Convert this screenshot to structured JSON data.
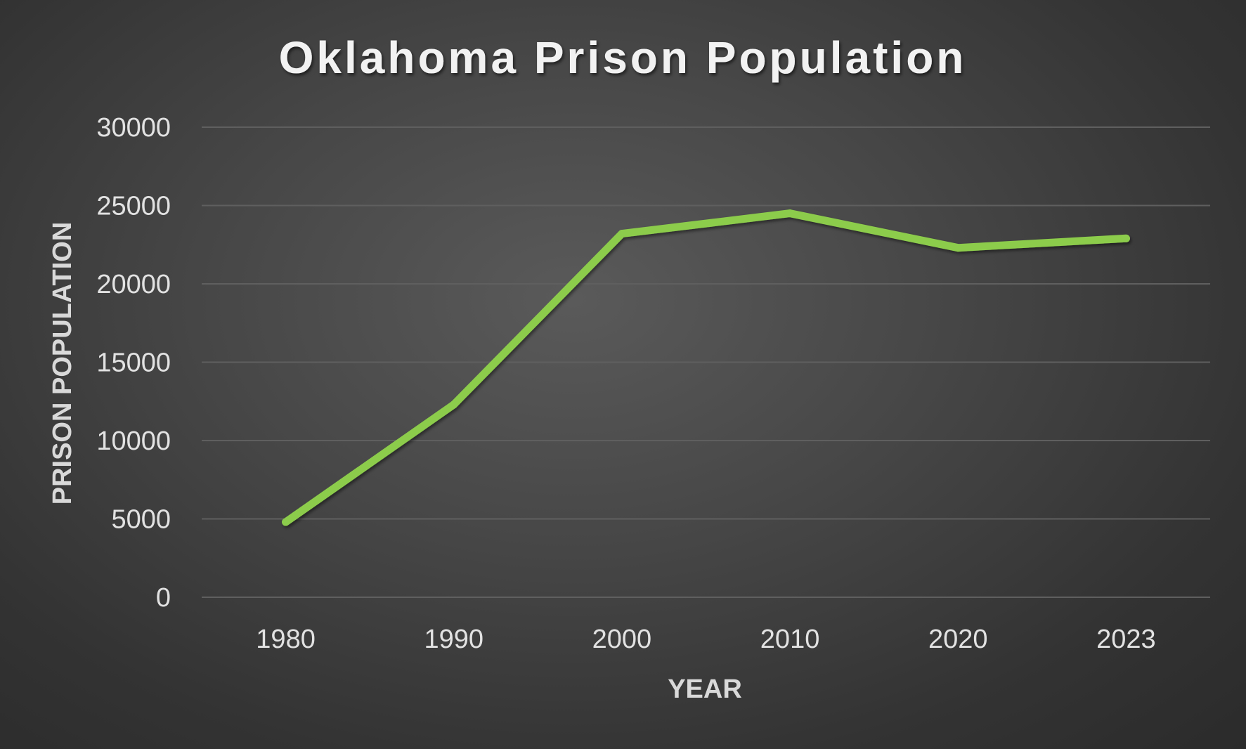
{
  "chart_data": {
    "type": "line",
    "title": "Oklahoma Prison Population",
    "xlabel": "YEAR",
    "ylabel": "PRISON POPULATION",
    "categories": [
      "1980",
      "1990",
      "2000",
      "2010",
      "2020",
      "2023"
    ],
    "series": [
      {
        "values": [
          4800,
          12300,
          23200,
          24500,
          22300,
          22900
        ],
        "color": "#8ccc4c"
      }
    ],
    "ylim": [
      0,
      30000
    ],
    "yticks": [
      "0",
      "5000",
      "10000",
      "15000",
      "20000",
      "25000",
      "30000"
    ],
    "grid": true,
    "legend": "none"
  },
  "colors": {
    "title": "#f2f2f2",
    "tick_labels": "#e2e2e2",
    "axis_titles": "#d9d9d9",
    "gridlines": "#5f5f5f"
  }
}
